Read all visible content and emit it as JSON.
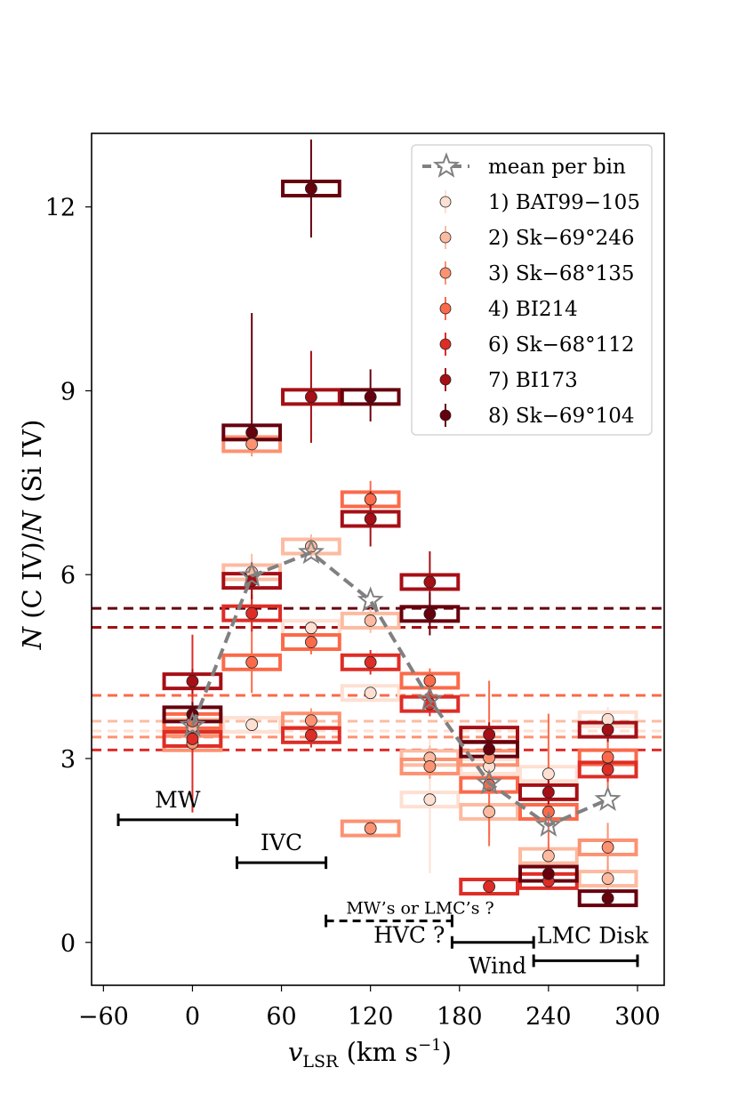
{
  "chart_data": {
    "type": "scatter",
    "title": "",
    "xlabel": "v_LSR (km s^-1)",
    "xlabel_parts": {
      "var": "v",
      "sub": "LSR",
      "unit": "(km s",
      "sup": "−1",
      "close": ")"
    },
    "ylabel": "N (C IV)/N (Si IV)",
    "ylabel_parts": [
      "N",
      " (C IV)/",
      "N",
      " (Si IV)"
    ],
    "xlim": [
      -68,
      318
    ],
    "ylim": [
      -0.7,
      13.2
    ],
    "xticks": [
      -60,
      0,
      60,
      120,
      180,
      240,
      300
    ],
    "xtick_labels": [
      "−60",
      "0",
      "60",
      "120",
      "180",
      "240",
      "300"
    ],
    "yticks": [
      0,
      3,
      6,
      9,
      12
    ],
    "ytick_labels": [
      "0",
      "3",
      "6",
      "9",
      "12"
    ],
    "grid": false,
    "legend_position": "top-right",
    "bin_halfwidth": 20,
    "mean_series": {
      "name": "mean per bin",
      "color": "#808080",
      "x": [
        0,
        40,
        80,
        120,
        160,
        200,
        240,
        280
      ],
      "y": [
        3.54,
        5.98,
        6.36,
        5.58,
        3.96,
        2.6,
        1.91,
        2.33
      ]
    },
    "series": [
      {
        "name": "1) BAT99−105",
        "color": "#fee0d2",
        "mean_line": 3.45,
        "points": [
          {
            "x": 40,
            "y": 3.55,
            "err": [
              0.1,
              0.1
            ]
          },
          {
            "x": 80,
            "y": 5.13,
            "err": [
              0.1,
              0.1
            ]
          },
          {
            "x": 120,
            "y": 4.07,
            "err": [
              0.1,
              0.1
            ]
          },
          {
            "x": 160,
            "y": 2.33,
            "err": [
              1.2,
              1.0
            ]
          },
          {
            "x": 200,
            "y": 2.87,
            "err": [
              0.3,
              0.3
            ]
          },
          {
            "x": 240,
            "y": 2.75,
            "err": [
              0.5,
              0.5
            ]
          },
          {
            "x": 280,
            "y": 3.64,
            "err": [
              0.2,
              0.2
            ]
          }
        ]
      },
      {
        "name": "2) Sk−69°246",
        "color": "#fcbba1",
        "mean_line": 3.61,
        "points": [
          {
            "x": 0,
            "y": 3.52,
            "err": [
              0.2,
              0.2
            ]
          },
          {
            "x": 40,
            "y": 6.04,
            "err": [
              0.3,
              0.3
            ]
          },
          {
            "x": 80,
            "y": 6.46,
            "err": [
              0.2,
              0.2
            ]
          },
          {
            "x": 120,
            "y": 5.25,
            "err": [
              0.2,
              0.2
            ]
          },
          {
            "x": 160,
            "y": 3.01,
            "err": [
              0.2,
              0.2
            ]
          },
          {
            "x": 200,
            "y": 2.13,
            "err": [
              0.4,
              0.4
            ]
          },
          {
            "x": 240,
            "y": 1.41,
            "err": [
              0.2,
              0.2
            ]
          },
          {
            "x": 280,
            "y": 1.04,
            "err": [
              0.2,
              0.2
            ]
          }
        ]
      },
      {
        "name": "3) Sk−68°135",
        "color": "#fc9272",
        "mean_line": 3.35,
        "points": [
          {
            "x": 0,
            "y": 3.25,
            "err": [
              0.2,
              0.2
            ]
          },
          {
            "x": 40,
            "y": 8.13,
            "err": [
              0.2,
              0.2
            ]
          },
          {
            "x": 80,
            "y": 3.62,
            "err": [
              0.2,
              0.2
            ]
          },
          {
            "x": 120,
            "y": 1.86,
            "err": [
              0.1,
              0.1
            ]
          },
          {
            "x": 160,
            "y": 2.87,
            "err": [
              0.2,
              0.2
            ]
          },
          {
            "x": 200,
            "y": 3.01,
            "err": [
              0.2,
              0.2
            ]
          },
          {
            "x": 280,
            "y": 1.55,
            "err": [
              0.4,
              0.4
            ]
          }
        ]
      },
      {
        "name": "4) BI214",
        "color": "#fb6a4a",
        "mean_line": 4.03,
        "points": [
          {
            "x": 0,
            "y": 3.61,
            "err": [
              0.2,
              0.2
            ]
          },
          {
            "x": 40,
            "y": 4.57,
            "err": [
              0.5,
              1.6
            ]
          },
          {
            "x": 80,
            "y": 4.9,
            "err": [
              0.2,
              0.2
            ]
          },
          {
            "x": 120,
            "y": 7.23,
            "err": [
              0.3,
              0.3
            ]
          },
          {
            "x": 160,
            "y": 4.27,
            "err": [
              0.2,
              0.2
            ]
          },
          {
            "x": 200,
            "y": 2.57,
            "err": [
              1.0,
              1.7
            ]
          },
          {
            "x": 240,
            "y": 2.13,
            "err": [
              0.7,
              1.6
            ]
          },
          {
            "x": 280,
            "y": 3.02,
            "err": [
              0.5,
              0.5
            ]
          }
        ]
      },
      {
        "name": "6) Sk−68°112",
        "color": "#de2d26",
        "mean_line": 3.14,
        "points": [
          {
            "x": 0,
            "y": 3.32,
            "err": [
              1.2,
              1.7
            ]
          },
          {
            "x": 40,
            "y": 5.37,
            "err": [
              0.3,
              0.3
            ]
          },
          {
            "x": 80,
            "y": 3.38,
            "err": [
              0.2,
              0.2
            ]
          },
          {
            "x": 120,
            "y": 4.57,
            "err": [
              0.2,
              0.2
            ]
          },
          {
            "x": 160,
            "y": 3.89,
            "err": [
              0.2,
              0.2
            ]
          },
          {
            "x": 200,
            "y": 0.91,
            "err": [
              0.05,
              0.05
            ]
          },
          {
            "x": 240,
            "y": 1.0,
            "err": [
              0.1,
              0.1
            ]
          },
          {
            "x": 280,
            "y": 2.82,
            "err": [
              0.2,
              0.2
            ]
          }
        ]
      },
      {
        "name": "7) BI173",
        "color": "#a50f15",
        "mean_line": 5.14,
        "points": [
          {
            "x": 0,
            "y": 4.26,
            "err": [
              0.2,
              0.2
            ]
          },
          {
            "x": 40,
            "y": 5.9,
            "err": [
              0.3,
              0.3
            ]
          },
          {
            "x": 80,
            "y": 8.9,
            "err": [
              0.75,
              0.75
            ]
          },
          {
            "x": 120,
            "y": 6.91,
            "err": [
              0.45,
              0.45
            ]
          },
          {
            "x": 160,
            "y": 5.88,
            "err": [
              0.5,
              0.5
            ]
          },
          {
            "x": 200,
            "y": 3.39,
            "err": [
              0.2,
              0.2
            ]
          },
          {
            "x": 240,
            "y": 2.45,
            "err": [
              0.2,
              0.2
            ]
          },
          {
            "x": 280,
            "y": 3.47,
            "err": [
              0.2,
              0.2
            ]
          }
        ]
      },
      {
        "name": "8) Sk−69°104",
        "color": "#67000d",
        "mean_line": 5.45,
        "points": [
          {
            "x": 0,
            "y": 3.72,
            "err": [
              0.2,
              0.2
            ]
          },
          {
            "x": 40,
            "y": 8.32,
            "err": [
              0.2,
              1.95
            ]
          },
          {
            "x": 80,
            "y": 12.3,
            "err": [
              0.8,
              0.8
            ]
          },
          {
            "x": 120,
            "y": 8.9,
            "err": [
              0.4,
              0.45
            ]
          },
          {
            "x": 160,
            "y": 5.36,
            "err": [
              0.35,
              0.35
            ]
          },
          {
            "x": 200,
            "y": 3.15,
            "err": [
              0.2,
              0.2
            ]
          },
          {
            "x": 240,
            "y": 1.12,
            "err": [
              0.1,
              0.1
            ]
          },
          {
            "x": 280,
            "y": 0.72,
            "err": [
              0.05,
              0.05
            ]
          }
        ]
      }
    ],
    "ranges": [
      {
        "label": "MW",
        "x0": -50,
        "x1": 30,
        "y": 2.0,
        "dashed": false,
        "label_pos": "above"
      },
      {
        "label": "IVC",
        "x0": 30,
        "x1": 90,
        "y": 1.3,
        "dashed": false,
        "label_pos": "above"
      },
      {
        "label": "MW’s or LMC’s ?",
        "x0": 90,
        "x1": 175,
        "y": 0.35,
        "dashed": true,
        "label_pos": "above-small"
      },
      {
        "label": "HVC ?",
        "x0": 175,
        "x1": 230,
        "y": 0.0,
        "dashed": false,
        "label_pos": "left"
      },
      {
        "label": "Wind",
        "x0": 230,
        "x1": 300,
        "y": -0.3,
        "dashed": false,
        "label_pos": "left"
      },
      {
        "label": "LMC Disk",
        "x0": 230,
        "x1": 300,
        "y": -0.3,
        "dashed": false,
        "label_pos": "above"
      }
    ]
  }
}
